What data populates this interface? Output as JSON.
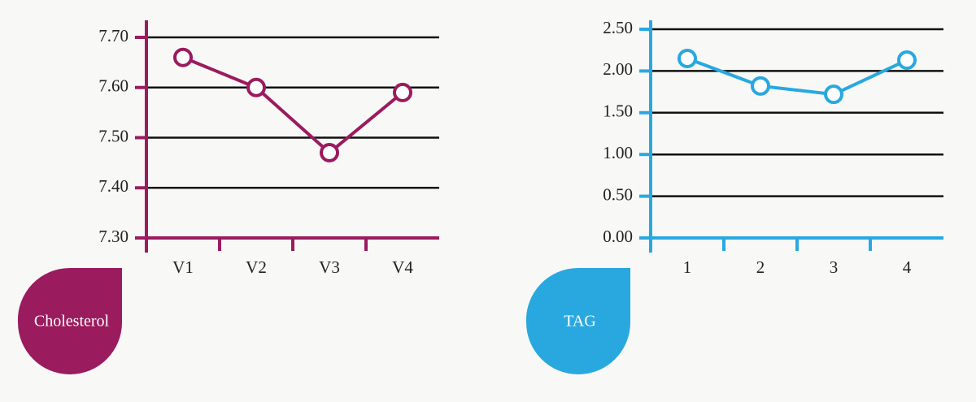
{
  "chart_data": [
    {
      "type": "line",
      "categories": [
        "V1",
        "V2",
        "V3",
        "V4"
      ],
      "series": [
        {
          "name": "Cholesterol",
          "color": "#9b1b5f",
          "values": [
            7.66,
            7.6,
            7.47,
            7.59
          ]
        }
      ],
      "ylim": [
        7.3,
        7.7
      ],
      "yticks": [
        {
          "value": 7.3,
          "label": "7.30"
        },
        {
          "value": 7.4,
          "label": "7.40"
        },
        {
          "value": 7.5,
          "label": "7.50"
        },
        {
          "value": 7.6,
          "label": "7.60"
        },
        {
          "value": 7.7,
          "label": "7.70"
        }
      ],
      "grid": true
    },
    {
      "type": "line",
      "categories": [
        "1",
        "2",
        "3",
        "4"
      ],
      "series": [
        {
          "name": "TAG",
          "color": "#29a8e0",
          "values": [
            2.15,
            1.82,
            1.72,
            2.13
          ]
        }
      ],
      "ylim": [
        0,
        2.5
      ],
      "yticks": [
        {
          "value": 0,
          "label": "0.00"
        },
        {
          "value": 0.5,
          "label": "0.50"
        },
        {
          "value": 1,
          "label": "1.00"
        },
        {
          "value": 1.5,
          "label": "1.50"
        },
        {
          "value": 2,
          "label": "2.00"
        },
        {
          "value": 2.5,
          "label": "2.50"
        }
      ],
      "grid": true
    }
  ]
}
